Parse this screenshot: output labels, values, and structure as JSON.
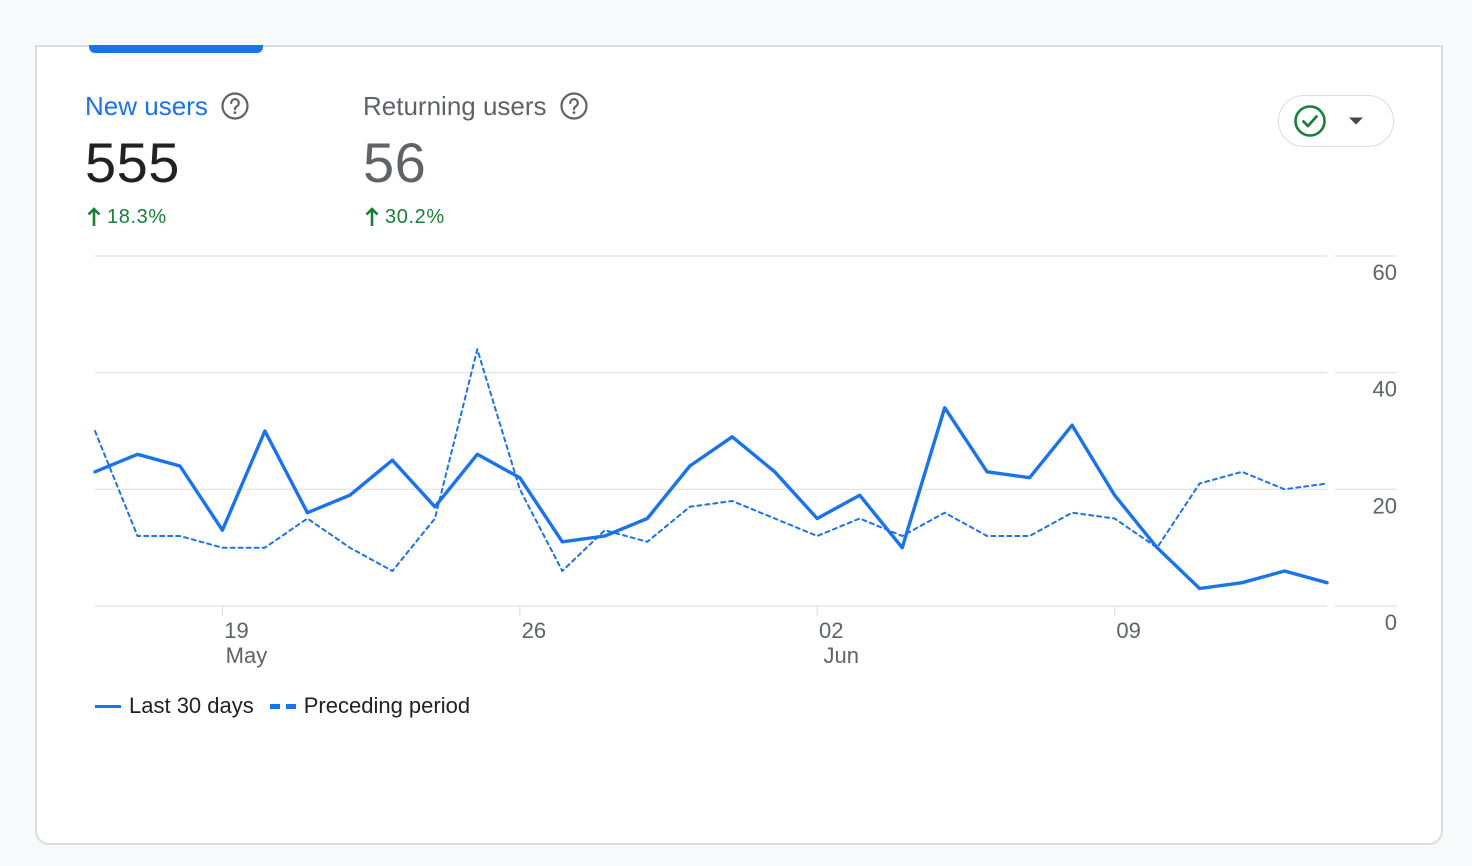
{
  "metrics": [
    {
      "label": "New users",
      "value": "555",
      "change": "18.3%",
      "selected": true
    },
    {
      "label": "Returning users",
      "value": "56",
      "change": "30.2%",
      "selected": false
    }
  ],
  "picker": {
    "icon": "check-circle-icon",
    "icon_color": "#188038"
  },
  "colors": {
    "accent": "#1a73e8",
    "positive": "#188038",
    "grid": "#e0e0e0",
    "axis_text": "#5f6368"
  },
  "chart_data": {
    "type": "line",
    "x": [
      "May 16",
      "May 17",
      "May 18",
      "May 19",
      "May 20",
      "May 21",
      "May 22",
      "May 23",
      "May 24",
      "May 25",
      "May 26",
      "May 27",
      "May 28",
      "May 29",
      "May 30",
      "May 31",
      "Jun 01",
      "Jun 02",
      "Jun 03",
      "Jun 04",
      "Jun 05",
      "Jun 06",
      "Jun 07",
      "Jun 08",
      "Jun 09",
      "Jun 10",
      "Jun 11",
      "Jun 12",
      "Jun 13",
      "Jun 14"
    ],
    "x_tick_labels": [
      {
        "label": "19",
        "sublabel": "May",
        "x": "May 19"
      },
      {
        "label": "26",
        "sublabel": "",
        "x": "May 26"
      },
      {
        "label": "02",
        "sublabel": "Jun",
        "x": "Jun 02"
      },
      {
        "label": "09",
        "sublabel": "",
        "x": "Jun 09"
      }
    ],
    "series": [
      {
        "name": "Last 30 days",
        "style": "solid",
        "values": [
          23,
          26,
          24,
          13,
          30,
          16,
          19,
          25,
          17,
          26,
          22,
          11,
          12,
          15,
          24,
          29,
          23,
          15,
          19,
          10,
          34,
          23,
          22,
          31,
          19,
          10,
          3,
          4,
          6,
          4
        ]
      },
      {
        "name": "Preceding period",
        "style": "dashed",
        "values": [
          30,
          12,
          12,
          10,
          10,
          15,
          10,
          6,
          15,
          44,
          20,
          6,
          13,
          11,
          17,
          18,
          15,
          12,
          15,
          12,
          16,
          12,
          12,
          16,
          15,
          10,
          21,
          23,
          20,
          21
        ]
      }
    ],
    "y_ticks": [
      "0",
      "20",
      "40",
      "60"
    ],
    "ylim": [
      0,
      60
    ],
    "y_axis_side": "right",
    "grid": true,
    "legend_position": "bottom-left"
  }
}
